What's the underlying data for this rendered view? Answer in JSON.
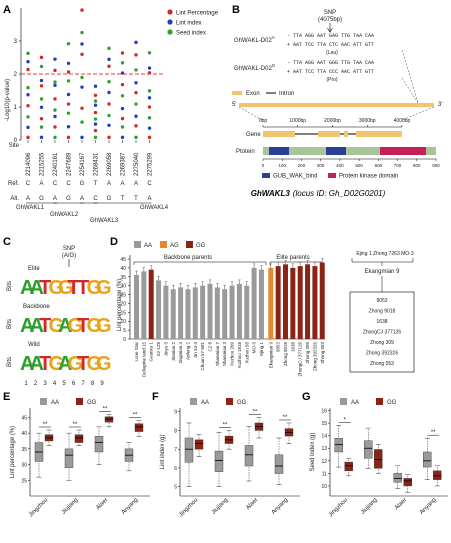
{
  "panel_letters": [
    "A",
    "B",
    "C",
    "D",
    "E",
    "F",
    "G"
  ],
  "panelA": {
    "legend": [
      "Lint Percentage",
      "Lint index",
      "Seed index"
    ],
    "colors": {
      "lint_percentage": "#d62728",
      "lint_index": "#1f3fbf",
      "seed_index": "#2ca02c",
      "threshold": "#e8403a"
    },
    "ylabel": "-Log10(p-value)",
    "yticks": [
      "0",
      "1",
      "2",
      "3"
    ],
    "threshold": 2,
    "row_titles": [
      "Site",
      "Ref.",
      "Alt."
    ],
    "sites": [
      "2214096",
      "2215255",
      "2240161",
      "2247689",
      "2254167",
      "2268431",
      "2269058",
      "2269387",
      "2275040",
      "2275299"
    ],
    "ref": [
      "C",
      "A",
      "C",
      "C",
      "G",
      "T",
      "A",
      "A",
      "A",
      "C"
    ],
    "alt": [
      "A",
      "G",
      "A",
      "G",
      "A",
      "C",
      "G",
      "T",
      "T",
      "A"
    ],
    "genes": [
      "GhWAKL1",
      "GhWAKL2",
      "GhWAKL3",
      "GhWAKL4"
    ]
  },
  "panelB": {
    "snp_label": "SNP",
    "snp_pos": "(4075bp)",
    "alleleA_name": "GhWAKL-D02",
    "alleleA_sup": "A",
    "alleleA_top": "- TTA AGG AAT GAG TTG TAA CAA",
    "alleleA_bot": "+ AAT TCC TTA CTC AAC ATT GTT",
    "alleleA_aa": "(Leu)",
    "alleleG_name": "GhWAKL-D02",
    "alleleG_sup": "G",
    "alleleG_top": "- TTA AGG AAT GGG TTG TAA CAA",
    "alleleG_bot": "+ AAT TCC TTA CCC AAC ATT GTT",
    "alleleG_aa": "(Pro)",
    "exon_label": "Exon",
    "intron_label": "Intron",
    "five_prime": "5'",
    "three_prime": "3'",
    "gene_row": "Gene",
    "protein_row": "Ptotein",
    "bp_ticks": [
      "0bp",
      "1000bp",
      "2000bp",
      "3000bp",
      "4000bp"
    ],
    "aa_ticks": [
      "0",
      "100",
      "200",
      "300",
      "400",
      "500",
      "600",
      "700",
      "800",
      "900"
    ],
    "domain_legend": [
      "GUB_WAK_bind",
      "Protein kinase domain"
    ],
    "caption_gene": "GhWAKL3",
    "caption_rest": "(locus ID: Gh_D02G0201)"
  },
  "panelC": {
    "snp_label": "SNP",
    "snp_alleles": "(A/G)",
    "groups": [
      "Elite",
      "Backbone",
      "Wild"
    ],
    "ylabel": "Bits",
    "positions": [
      "1",
      "2",
      "3",
      "4",
      "5",
      "6",
      "7",
      "8",
      "9"
    ]
  },
  "panelD": {
    "legend": [
      "AA",
      "AG",
      "GG"
    ],
    "colors": {
      "AA": "#9a9a9a",
      "AG": "#e58a2b",
      "GG": "#8b2416"
    },
    "ylabel": "Lint percentage (%)",
    "yticks": [
      "0",
      "5",
      "10",
      "15",
      "20",
      "25",
      "30",
      "35",
      "40",
      "45"
    ],
    "group_backbone": "Backbone parents",
    "group_elite": "Elite parents",
    "pedigree_top": "Ejing 1 Zhong 7263 MO-3",
    "pedigree_mid": "Ekangmian 9",
    "pedigree_list": [
      "9053",
      "Zhong 9018",
      "1638",
      "ZhongCJ 377126",
      "Zhong 309",
      "Zhong 392326",
      "Zhong 053"
    ]
  },
  "chart_data": [
    {
      "type": "bar",
      "title": "",
      "ylabel": "Lint percentage (%)",
      "ylim": [
        0,
        45
      ],
      "categories": [
        "Lone Star",
        "Deltapine land 15",
        "Guanxu 1",
        "52-128",
        "Jinyu 3",
        "Jinmian 2",
        "Jingmian 4",
        "Anfeng 2",
        "Jin 34-3",
        "Chuan 57-681",
        "C2 8",
        "Shanmian 7",
        "Shanmian 3",
        "Xuzhou 209",
        "Xuzhou 1818",
        "Xuzhou 58",
        "MO-3",
        "Ejing 1",
        "Ekangmian 9",
        "9053",
        "Zhong 9018",
        "1638",
        "ZhongCJ 377126",
        "Zhong 309",
        "Zhong 392326",
        "Zhong 053"
      ],
      "values": [
        36,
        38,
        39,
        33,
        30,
        28,
        29,
        28,
        29,
        30,
        31,
        29,
        28,
        30,
        31,
        30,
        40,
        39,
        40,
        41,
        42,
        40,
        41,
        42,
        41,
        43
      ],
      "genotype": [
        "AA",
        "AA",
        "GG",
        "AA",
        "AA",
        "AA",
        "AA",
        "AA",
        "AA",
        "AA",
        "AA",
        "AA",
        "AA",
        "AA",
        "AA",
        "AA",
        "AA",
        "AA",
        "AG",
        "GG",
        "GG",
        "GG",
        "GG",
        "GG",
        "GG",
        "GG"
      ]
    },
    {
      "type": "box",
      "title": "",
      "ylabel": "Lint percentage (%)",
      "ylim": [
        20,
        48
      ],
      "yticks": [
        25,
        30,
        35,
        40,
        45
      ],
      "categories": [
        "Jingzhou",
        "Jiujiang",
        "Alaer",
        "Anyang"
      ],
      "significance": [
        "**",
        "**",
        "**",
        "**"
      ],
      "series": [
        {
          "name": "AA",
          "boxes": [
            [
              26,
              31,
              34,
              37,
              40
            ],
            [
              25,
              29,
              33,
              35,
              40
            ],
            [
              30,
              34,
              37,
              39,
              42
            ],
            [
              28,
              31,
              33,
              35,
              37
            ]
          ]
        },
        {
          "name": "GG",
          "boxes": [
            [
              36,
              37.5,
              38.5,
              39.5,
              41
            ],
            [
              36,
              37,
              38.5,
              39.5,
              41
            ],
            [
              42,
              43.5,
              44.5,
              45.2,
              46
            ],
            [
              39,
              40.5,
              42,
              43,
              44
            ]
          ]
        }
      ]
    },
    {
      "type": "box",
      "title": "",
      "ylabel": "Lint index (g)",
      "ylim": [
        4.5,
        9.2
      ],
      "yticks": [
        5,
        6,
        7,
        8,
        9
      ],
      "categories": [
        "Jingzhou",
        "Jiujiang",
        "Alaer",
        "Anyang"
      ],
      "significance": [
        "",
        "**",
        "**",
        "**"
      ],
      "series": [
        {
          "name": "AA",
          "boxes": [
            [
              5,
              6.3,
              7,
              7.6,
              8.4
            ],
            [
              5,
              5.8,
              6.4,
              6.9,
              7.9
            ],
            [
              5.3,
              6.1,
              6.7,
              7.2,
              8.2
            ],
            [
              5.1,
              5.7,
              6.1,
              6.7,
              7.6
            ]
          ]
        },
        {
          "name": "GG",
          "boxes": [
            [
              6.6,
              7,
              7.3,
              7.5,
              7.8
            ],
            [
              7,
              7.3,
              7.5,
              7.7,
              8
            ],
            [
              7.6,
              8,
              8.2,
              8.4,
              8.7
            ],
            [
              7.3,
              7.7,
              7.9,
              8.1,
              8.4
            ]
          ]
        }
      ]
    },
    {
      "type": "box",
      "title": "",
      "ylabel": "Seed index (g)",
      "ylim": [
        9.2,
        16.2
      ],
      "yticks": [
        10,
        11,
        12,
        13,
        14,
        15,
        16
      ],
      "categories": [
        "Jingzhou",
        "Jiujiang",
        "Alaer",
        "Anyang"
      ],
      "significance": [
        "*",
        "",
        "",
        "**"
      ],
      "series": [
        {
          "name": "AA",
          "boxes": [
            [
              11.5,
              12.7,
              13.3,
              13.8,
              14.8
            ],
            [
              11.4,
              12.2,
              13,
              13.6,
              14.6
            ],
            [
              9.8,
              10.3,
              10.6,
              11,
              11.6
            ],
            [
              10.5,
              11.5,
              12,
              12.7,
              13.8
            ]
          ]
        },
        {
          "name": "GG",
          "boxes": [
            [
              10.8,
              11.2,
              11.6,
              11.9,
              12.2
            ],
            [
              11,
              11.4,
              12.1,
              12.9,
              13.3
            ],
            [
              9.5,
              10,
              10.4,
              10.6,
              10.9
            ],
            [
              10,
              10.5,
              10.8,
              11.2,
              11.6
            ]
          ]
        }
      ]
    }
  ]
}
